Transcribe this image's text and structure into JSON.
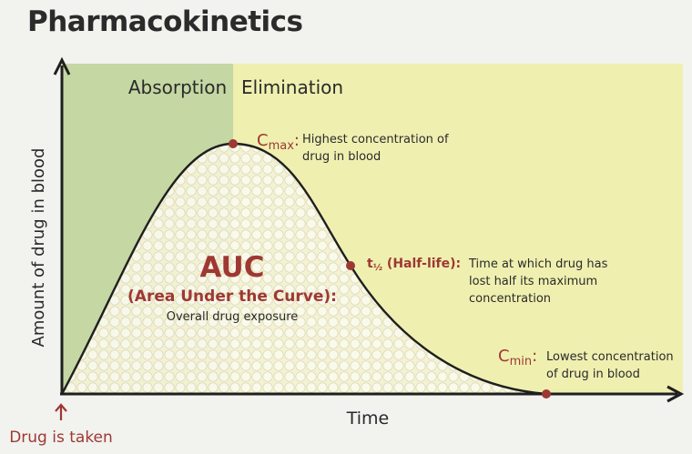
{
  "title": "Pharmacokinetics",
  "phases": {
    "absorption": "Absorption",
    "elimination": "Elimination"
  },
  "axes": {
    "ylabel": "Amount of drug in blood",
    "xlabel": "Time"
  },
  "start_marker": {
    "label": "Drug is taken"
  },
  "annotations": {
    "cmax": {
      "symbol": "C",
      "subscript": "max",
      "separator": ":",
      "line1": "Highest concentration of",
      "line2": "drug in blood"
    },
    "half_life": {
      "symbol": "t",
      "subscript": "½",
      "suffix": " (Half-life):",
      "line1": "Time at which drug has",
      "line2": "lost half its maximum",
      "line3": "concentration"
    },
    "cmin": {
      "symbol": "C",
      "subscript": "min",
      "separator": ":",
      "line1": "Lowest concentration",
      "line2": "of drug in blood"
    }
  },
  "auc": {
    "title": "AUC",
    "subtitle": "(Area Under the Curve):",
    "description": "Overall drug exposure"
  },
  "colors": {
    "absorption_bg": "#c5d7a3",
    "elimination_bg": "#eff0b0",
    "accent_red": "#9e3833",
    "curve": "#1f1f1f",
    "text": "#2a2a2a"
  }
}
